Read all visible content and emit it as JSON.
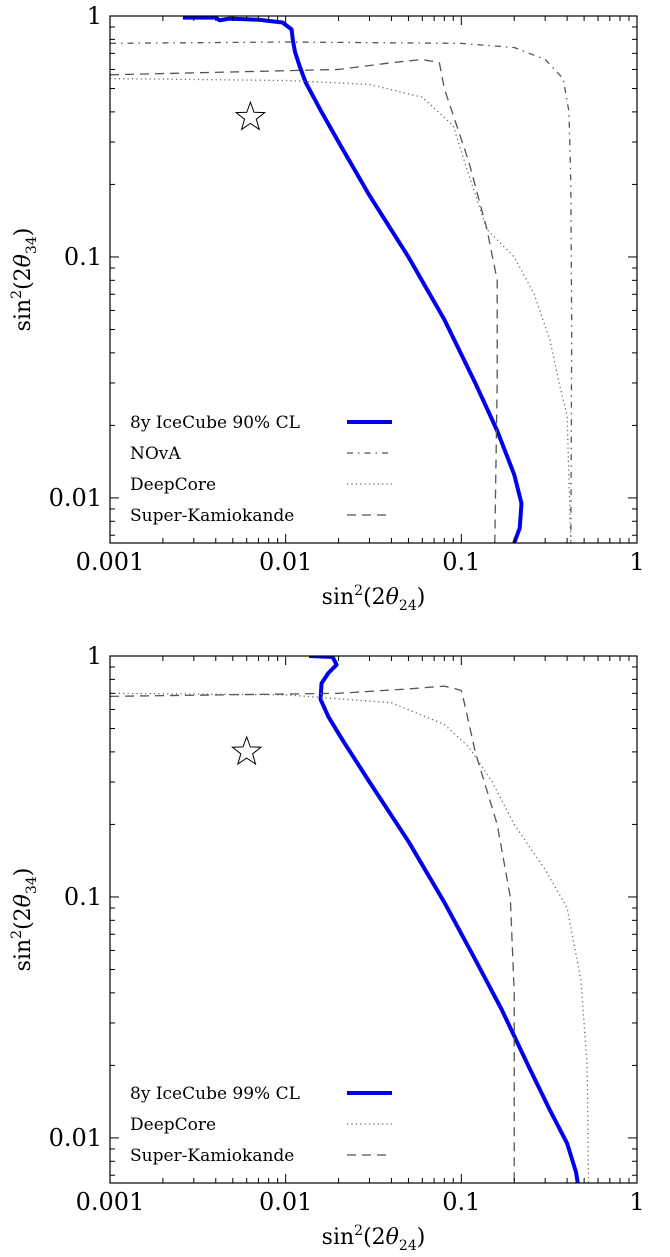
{
  "chart_data": [
    {
      "type": "line",
      "xlabel": "sin²(2θ₂₄)",
      "ylabel": "sin²(2θ₃₄)",
      "xscale": "log",
      "yscale": "log",
      "xlim": [
        0.001,
        1
      ],
      "ylim": [
        0.0065,
        1
      ],
      "x_ticks": [
        "0.001",
        "0.01",
        "0.1",
        "1"
      ],
      "y_ticks": [
        "0.01",
        "0.1",
        "1"
      ],
      "legend_position": "lower-left",
      "series": [
        {
          "name": "8y IceCube 90% CL",
          "style": "solid",
          "color": "#0000ee",
          "points": [
            [
              0.0026,
              0.985
            ],
            [
              0.004,
              0.985
            ],
            [
              0.0042,
              0.96
            ],
            [
              0.0048,
              0.975
            ],
            [
              0.007,
              0.965
            ],
            [
              0.0096,
              0.94
            ],
            [
              0.0108,
              0.88
            ],
            [
              0.011,
              0.79
            ],
            [
              0.0113,
              0.71
            ],
            [
              0.012,
              0.62
            ],
            [
              0.013,
              0.53
            ],
            [
              0.016,
              0.4
            ],
            [
              0.02,
              0.3
            ],
            [
              0.03,
              0.18
            ],
            [
              0.05,
              0.1
            ],
            [
              0.08,
              0.055
            ],
            [
              0.12,
              0.03
            ],
            [
              0.16,
              0.019
            ],
            [
              0.2,
              0.0125
            ],
            [
              0.22,
              0.0095
            ],
            [
              0.215,
              0.0075
            ],
            [
              0.2,
              0.0065
            ]
          ]
        },
        {
          "name": "NOvA",
          "style": "dashdot",
          "color": "#555555",
          "points": [
            [
              0.001,
              0.77
            ],
            [
              0.01,
              0.78
            ],
            [
              0.1,
              0.77
            ],
            [
              0.2,
              0.74
            ],
            [
              0.3,
              0.66
            ],
            [
              0.38,
              0.55
            ],
            [
              0.41,
              0.4
            ],
            [
              0.42,
              0.2
            ],
            [
              0.425,
              0.05
            ],
            [
              0.42,
              0.0065
            ]
          ]
        },
        {
          "name": "DeepCore",
          "style": "dotted",
          "color": "#666666",
          "points": [
            [
              0.001,
              0.55
            ],
            [
              0.01,
              0.54
            ],
            [
              0.03,
              0.52
            ],
            [
              0.06,
              0.46
            ],
            [
              0.09,
              0.35
            ],
            [
              0.11,
              0.22
            ],
            [
              0.14,
              0.13
            ],
            [
              0.2,
              0.1
            ],
            [
              0.26,
              0.07
            ],
            [
              0.32,
              0.045
            ],
            [
              0.36,
              0.03
            ],
            [
              0.4,
              0.022
            ],
            [
              0.42,
              0.0065
            ]
          ]
        },
        {
          "name": "Super-Kamiokande",
          "style": "dashed",
          "color": "#555555",
          "points": [
            [
              0.001,
              0.57
            ],
            [
              0.02,
              0.6
            ],
            [
              0.04,
              0.64
            ],
            [
              0.06,
              0.66
            ],
            [
              0.075,
              0.64
            ],
            [
              0.08,
              0.5
            ],
            [
              0.11,
              0.25
            ],
            [
              0.14,
              0.13
            ],
            [
              0.16,
              0.08
            ],
            [
              0.16,
              0.03
            ],
            [
              0.155,
              0.0065
            ]
          ]
        }
      ],
      "annotations": [
        {
          "type": "star-marker",
          "x": 0.0063,
          "y": 0.38
        }
      ]
    },
    {
      "type": "line",
      "xlabel": "sin²(2θ₂₄)",
      "ylabel": "sin²(2θ₃₄)",
      "xscale": "log",
      "yscale": "log",
      "xlim": [
        0.001,
        1
      ],
      "ylim": [
        0.0065,
        1
      ],
      "x_ticks": [
        "0.001",
        "0.01",
        "0.1",
        "1"
      ],
      "y_ticks": [
        "0.01",
        "0.1",
        "1"
      ],
      "legend_position": "lower-left",
      "series": [
        {
          "name": "8y IceCube 99% CL",
          "style": "solid",
          "color": "#0000ee",
          "points": [
            [
              0.0136,
              1.0
            ],
            [
              0.0185,
              0.99
            ],
            [
              0.0195,
              0.92
            ],
            [
              0.0175,
              0.85
            ],
            [
              0.016,
              0.77
            ],
            [
              0.0158,
              0.66
            ],
            [
              0.0175,
              0.56
            ],
            [
              0.021,
              0.45
            ],
            [
              0.03,
              0.3
            ],
            [
              0.05,
              0.17
            ],
            [
              0.08,
              0.095
            ],
            [
              0.12,
              0.055
            ],
            [
              0.17,
              0.034
            ],
            [
              0.24,
              0.02
            ],
            [
              0.32,
              0.013
            ],
            [
              0.4,
              0.0095
            ],
            [
              0.45,
              0.0072
            ],
            [
              0.46,
              0.0065
            ]
          ]
        },
        {
          "name": "DeepCore",
          "style": "dotted",
          "color": "#666666",
          "points": [
            [
              0.001,
              0.7
            ],
            [
              0.01,
              0.69
            ],
            [
              0.04,
              0.64
            ],
            [
              0.08,
              0.52
            ],
            [
              0.11,
              0.42
            ],
            [
              0.15,
              0.3
            ],
            [
              0.2,
              0.2
            ],
            [
              0.3,
              0.13
            ],
            [
              0.4,
              0.09
            ],
            [
              0.48,
              0.045
            ],
            [
              0.52,
              0.02
            ],
            [
              0.53,
              0.0065
            ]
          ]
        },
        {
          "name": "Super-Kamiokande",
          "style": "dashed",
          "color": "#555555",
          "points": [
            [
              0.001,
              0.68
            ],
            [
              0.02,
              0.7
            ],
            [
              0.05,
              0.73
            ],
            [
              0.08,
              0.75
            ],
            [
              0.1,
              0.72
            ],
            [
              0.105,
              0.62
            ],
            [
              0.12,
              0.4
            ],
            [
              0.16,
              0.2
            ],
            [
              0.19,
              0.1
            ],
            [
              0.2,
              0.04
            ],
            [
              0.2,
              0.0065
            ]
          ]
        }
      ],
      "annotations": [
        {
          "type": "star-marker",
          "x": 0.006,
          "y": 0.4
        }
      ]
    }
  ]
}
